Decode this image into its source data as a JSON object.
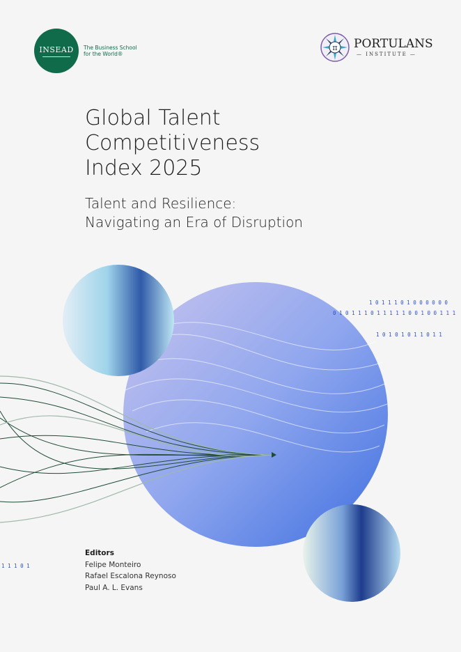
{
  "header": {
    "insead": {
      "logo_text": "INSEAD",
      "tagline_line1": "The Business School",
      "tagline_line2": "for the World®",
      "brand_color": "#0f6b4a"
    },
    "portulans": {
      "name": "PORTULANS",
      "sub": "INSTITUTE",
      "emblem_symbol": "π"
    }
  },
  "cover": {
    "title_lines": [
      "Global Talent",
      "Competitiveness",
      "Index 2025"
    ],
    "subtitle_lines": [
      "Talent and Resilience:",
      "Navigating an Era of Disruption"
    ]
  },
  "decor": {
    "binary_lines": [
      "1 0 1 1 1 0 1 0 0 0 0 0 0",
      "0 1 0 1 1 1 0 1 1 1 1 1 0 0 1 0 0 1 1 1",
      "1 0 1 0 1 0 1 1 0 1 1",
      "1 1 1 0 1"
    ]
  },
  "editors": {
    "heading": "Editors",
    "names": [
      "Felipe Monteiro",
      "Rafael Escalona Reynoso",
      "Paul A. L. Evans"
    ]
  }
}
